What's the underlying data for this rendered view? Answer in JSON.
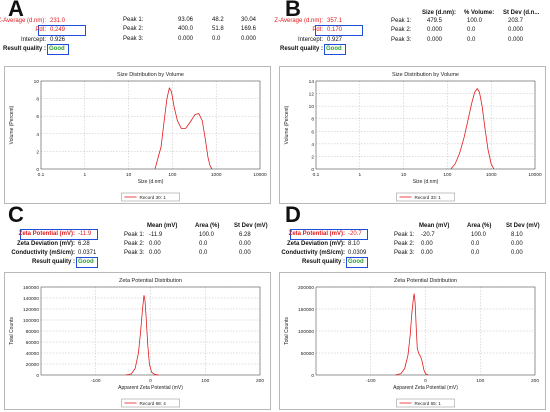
{
  "panels": [
    {
      "letter": "A",
      "stats": [
        {
          "label": "Z-Average (d.nm):",
          "value": "231.0",
          "red": true,
          "boxed": false
        },
        {
          "label": "PdI:",
          "value": "0.249",
          "red": true,
          "boxed": true
        },
        {
          "label": "Intercept:",
          "value": "0.926",
          "red": false,
          "boxed": false
        },
        {
          "label": "Result quality :",
          "value": "Good",
          "red": false,
          "boxed": false,
          "quality": true
        }
      ],
      "peak_headers": [
        "",
        "",
        ""
      ],
      "peaks": [
        {
          "label": "Peak 1:",
          "v": [
            "93.06",
            "48.2",
            "30.04"
          ]
        },
        {
          "label": "Peak 2:",
          "v": [
            "400.0",
            "51.8",
            "169.6"
          ]
        },
        {
          "label": "Peak 3:",
          "v": [
            "0.000",
            "0.0",
            "0.000"
          ]
        }
      ]
    },
    {
      "letter": "B",
      "stats": [
        {
          "label": "Z-Average (d.nm):",
          "value": "357.1",
          "red": true,
          "boxed": false
        },
        {
          "label": "PdI:",
          "value": "0.170",
          "red": true,
          "boxed": true
        },
        {
          "label": "Intercept:",
          "value": "0.927",
          "red": false,
          "boxed": false
        },
        {
          "label": "Result quality :",
          "value": "Good",
          "red": false,
          "boxed": false,
          "quality": true
        }
      ],
      "peak_headers": [
        "Size (d.nm):",
        "% Volume:",
        "St Dev (d.n..."
      ],
      "peaks": [
        {
          "label": "Peak 1:",
          "v": [
            "479.5",
            "100.0",
            "203.7"
          ]
        },
        {
          "label": "Peak 2:",
          "v": [
            "0.000",
            "0.0",
            "0.000"
          ]
        },
        {
          "label": "Peak 3:",
          "v": [
            "0.000",
            "0.0",
            "0.000"
          ]
        }
      ]
    },
    {
      "letter": "C",
      "stats": [
        {
          "label": "Zeta Potential (mV):",
          "value": "-11.9",
          "red": true,
          "boxed": true
        },
        {
          "label": "Zeta Deviation (mV):",
          "value": "6.28",
          "red": false,
          "boxed": false
        },
        {
          "label": "Conductivity (mS/cm):",
          "value": "0.0371",
          "red": false,
          "boxed": false
        },
        {
          "label": "Result quality :",
          "value": "Good",
          "red": false,
          "boxed": false,
          "quality": true
        }
      ],
      "peak_headers": [
        "Mean (mV)",
        "Area (%)",
        "St Dev (mV)"
      ],
      "peaks": [
        {
          "label": "Peak 1:",
          "v": [
            "-11.9",
            "100.0",
            "6.28"
          ]
        },
        {
          "label": "Peak 2:",
          "v": [
            "0.00",
            "0.0",
            "0.00"
          ]
        },
        {
          "label": "Peak 3:",
          "v": [
            "0.00",
            "0.0",
            "0.00"
          ]
        }
      ]
    },
    {
      "letter": "D",
      "stats": [
        {
          "label": "Zeta Potential (mV):",
          "value": "-20.7",
          "red": true,
          "boxed": true
        },
        {
          "label": "Zeta Deviation (mV):",
          "value": "8.10",
          "red": false,
          "boxed": false
        },
        {
          "label": "Conductivity (mS/cm):",
          "value": "0.0309",
          "red": false,
          "boxed": false
        },
        {
          "label": "Result quality :",
          "value": "Good",
          "red": false,
          "boxed": false,
          "quality": true
        }
      ],
      "peak_headers": [
        "Mean (mV)",
        "Area (%)",
        "St Dev (mV)"
      ],
      "peaks": [
        {
          "label": "Peak 1:",
          "v": [
            "-20.7",
            "100.0",
            "8.10"
          ]
        },
        {
          "label": "Peak 2:",
          "v": [
            "0.00",
            "0.0",
            "0.00"
          ]
        },
        {
          "label": "Peak 3:",
          "v": [
            "0.00",
            "0.0",
            "0.00"
          ]
        }
      ]
    }
  ],
  "chart_data": [
    {
      "type": "line",
      "title": "Size Distribution by Volume",
      "xlabel": "Size (d.nm)",
      "ylabel": "Volume (Percent)",
      "xscale": "log",
      "xlim": [
        0.1,
        10000
      ],
      "ylim": [
        0,
        10
      ],
      "xticks": [
        0.1,
        1,
        10,
        100,
        1000,
        10000
      ],
      "xticklabels": [
        "0.1",
        "1",
        "10",
        "100",
        "1000",
        "10000"
      ],
      "yticks": [
        0,
        2,
        4,
        6,
        8,
        10
      ],
      "grid": true,
      "series": [
        {
          "name": "Record 30: 1",
          "x": [
            40,
            55,
            65,
            75,
            85,
            95,
            110,
            130,
            160,
            200,
            260,
            330,
            400,
            480,
            560,
            650,
            720,
            800
          ],
          "y": [
            0,
            2.5,
            5.5,
            8.0,
            9.2,
            8.8,
            7.0,
            5.5,
            4.6,
            4.6,
            5.4,
            6.2,
            6.3,
            5.5,
            3.5,
            1.3,
            0.4,
            0
          ]
        }
      ],
      "legend": "bottom-center",
      "color": "#e31a1c"
    },
    {
      "type": "line",
      "title": "Size Distribution by Volume",
      "xlabel": "Size (d.nm)",
      "ylabel": "Volume (Percent)",
      "xscale": "log",
      "xlim": [
        0.1,
        10000
      ],
      "ylim": [
        0,
        14
      ],
      "xticks": [
        0.1,
        1,
        10,
        100,
        1000,
        10000
      ],
      "xticklabels": [
        "0.1",
        "1",
        "10",
        "100",
        "1000",
        "10000"
      ],
      "yticks": [
        0,
        2,
        4,
        6,
        8,
        10,
        12,
        14
      ],
      "grid": true,
      "series": [
        {
          "name": "Record 33: 1",
          "x": [
            120,
            150,
            190,
            240,
            300,
            360,
            420,
            480,
            540,
            620,
            720,
            850,
            1000,
            1150
          ],
          "y": [
            0,
            0.8,
            2.5,
            5.0,
            8.0,
            10.5,
            12.2,
            12.8,
            12.2,
            10.0,
            6.5,
            3.0,
            0.8,
            0
          ]
        }
      ],
      "legend": "bottom-center",
      "color": "#e31a1c"
    },
    {
      "type": "line",
      "title": "Zeta Potential Distribution",
      "xlabel": "Apparent Zeta Potential (mV)",
      "ylabel": "Total Counts",
      "xlim": [
        -200,
        200
      ],
      "ylim": [
        0,
        160000
      ],
      "xticks": [
        -100,
        0,
        100,
        200
      ],
      "xticklabels": [
        "-100",
        "0",
        "100",
        "200"
      ],
      "yticks": [
        0,
        20000,
        40000,
        60000,
        80000,
        100000,
        120000,
        140000,
        160000
      ],
      "grid": true,
      "series": [
        {
          "name": "Record 68: 4",
          "x": [
            -45,
            -35,
            -28,
            -22,
            -18,
            -15,
            -13,
            -11.9,
            -10,
            -8,
            -5,
            -2,
            2,
            8,
            15
          ],
          "y": [
            0,
            2000,
            12000,
            40000,
            80000,
            115000,
            135000,
            145000,
            135000,
            105000,
            55000,
            20000,
            5000,
            1000,
            0
          ]
        }
      ],
      "legend": "bottom-center",
      "color": "#e31a1c"
    },
    {
      "type": "line",
      "title": "Zeta Potential Distribution",
      "xlabel": "Apparent Zeta Potential (mV)",
      "ylabel": "Total Counts",
      "xlim": [
        -200,
        200
      ],
      "ylim": [
        0,
        200000
      ],
      "xticks": [
        -100,
        0,
        100,
        200
      ],
      "xticklabels": [
        "-100",
        "0",
        "100",
        "200"
      ],
      "yticks": [
        0,
        50000,
        100000,
        150000,
        200000
      ],
      "grid": true,
      "series": [
        {
          "name": "Record 65: 1",
          "x": [
            -55,
            -45,
            -38,
            -32,
            -28,
            -25,
            -22,
            -20.7,
            -19,
            -17,
            -15,
            -12,
            -9,
            -6,
            -3,
            0,
            5
          ],
          "y": [
            0,
            3000,
            15000,
            45000,
            90000,
            140000,
            175000,
            185000,
            165000,
            110000,
            60000,
            48000,
            42000,
            30000,
            12000,
            3000,
            0
          ]
        }
      ],
      "legend": "bottom-center",
      "color": "#e31a1c"
    }
  ]
}
